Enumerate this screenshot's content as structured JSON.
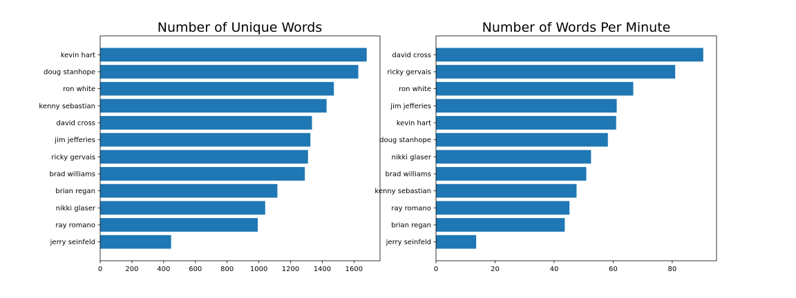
{
  "chart_data": [
    {
      "type": "bar",
      "orientation": "horizontal",
      "title": "Number of Unique Words",
      "xlabel": "",
      "ylabel": "",
      "xlim": [
        0,
        1764
      ],
      "xticks": [
        0,
        200,
        400,
        600,
        800,
        1000,
        1200,
        1400,
        1600
      ],
      "categories": [
        "kevin hart",
        "doug stanhope",
        "ron white",
        "kenny sebastian",
        "david cross",
        "jim jefferies",
        "ricky gervais",
        "brad williams",
        "brian regan",
        "nikki glaser",
        "ray romano",
        "jerry seinfeld"
      ],
      "values": [
        1680,
        1627,
        1473,
        1427,
        1335,
        1325,
        1310,
        1290,
        1117,
        1040,
        993,
        447
      ],
      "color": "#1f77b4",
      "grid": false
    },
    {
      "type": "bar",
      "orientation": "horizontal",
      "title": "Number of Words Per Minute",
      "xlabel": "",
      "ylabel": "",
      "xlim": [
        0,
        95
      ],
      "xticks": [
        0,
        20,
        40,
        60,
        80
      ],
      "categories": [
        "david cross",
        "ricky gervais",
        "ron white",
        "jim jefferies",
        "kevin hart",
        "doug stanhope",
        "nikki glaser",
        "brad williams",
        "kenny sebastian",
        "ray romano",
        "brian regan",
        "jerry seinfeld"
      ],
      "values": [
        90.5,
        81.0,
        66.8,
        61.2,
        61.0,
        58.2,
        52.5,
        50.9,
        47.6,
        45.2,
        43.6,
        13.6
      ],
      "color": "#1f77b4",
      "grid": false
    }
  ]
}
